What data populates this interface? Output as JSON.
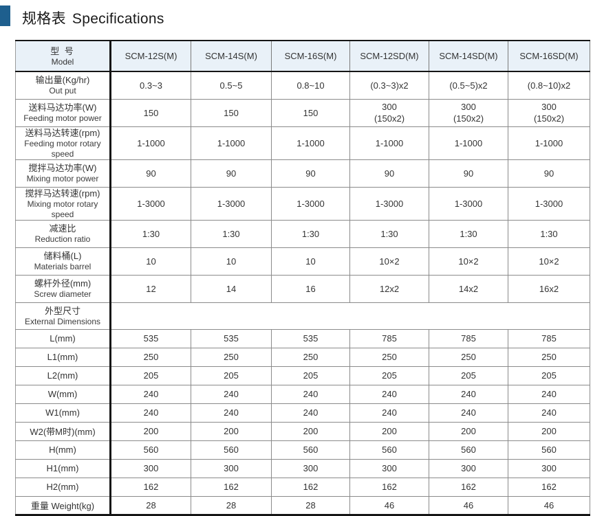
{
  "title": {
    "zh": "规格表",
    "en": "Specifications"
  },
  "colors": {
    "accent_blue": "#1e5f8e",
    "header_bg": "#e9f1f8",
    "border_dark": "#151515",
    "border_gray": "#8a8a8a",
    "text": "#333333"
  },
  "table": {
    "model_header": {
      "zh": "型 号",
      "en": "Model"
    },
    "columns": [
      "SCM-12S(M)",
      "SCM-14S(M)",
      "SCM-16S(M)",
      "SCM-12SD(M)",
      "SCM-14SD(M)",
      "SCM-16SD(M)"
    ],
    "rows": [
      {
        "label_zh": "输出量(Kg/hr)",
        "label_en": "Out put",
        "values": [
          "0.3~3",
          "0.5~5",
          "0.8~10",
          "(0.3~3)x2",
          "(0.5~5)x2",
          "(0.8~10)x2"
        ]
      },
      {
        "label_zh": "送料马达功率(W)",
        "label_en": "Feeding motor power",
        "values": [
          "150",
          "150",
          "150",
          "300\n(150x2)",
          "300\n(150x2)",
          "300\n(150x2)"
        ]
      },
      {
        "label_zh": "送料马达转速(rpm)",
        "label_en": "Feeding motor rotary speed",
        "values": [
          "1-1000",
          "1-1000",
          "1-1000",
          "1-1000",
          "1-1000",
          "1-1000"
        ]
      },
      {
        "label_zh": "搅拌马达功率(W)",
        "label_en": "Mixing motor power",
        "values": [
          "90",
          "90",
          "90",
          "90",
          "90",
          "90"
        ]
      },
      {
        "label_zh": "搅拌马达转速(rpm)",
        "label_en": "Mixing motor rotary speed",
        "values": [
          "1-3000",
          "1-3000",
          "1-3000",
          "1-3000",
          "1-3000",
          "1-3000"
        ]
      },
      {
        "label_zh": "减速比",
        "label_en": "Reduction ratio",
        "values": [
          "1:30",
          "1:30",
          "1:30",
          "1:30",
          "1:30",
          "1:30"
        ]
      },
      {
        "label_zh": "储料桶(L)",
        "label_en": "Materials barrel",
        "values": [
          "10",
          "10",
          "10",
          "10×2",
          "10×2",
          "10×2"
        ]
      },
      {
        "label_zh": "螺杆外径(mm)",
        "label_en": "Screw diameter",
        "values": [
          "12",
          "14",
          "16",
          "12x2",
          "14x2",
          "16x2"
        ]
      },
      {
        "label_zh": "外型尺寸",
        "label_en": "External Dimensions",
        "merged": true
      },
      {
        "label": "L(mm)",
        "values": [
          "535",
          "535",
          "535",
          "785",
          "785",
          "785"
        ]
      },
      {
        "label": "L1(mm)",
        "values": [
          "250",
          "250",
          "250",
          "250",
          "250",
          "250"
        ]
      },
      {
        "label": "L2(mm)",
        "values": [
          "205",
          "205",
          "205",
          "205",
          "205",
          "205"
        ]
      },
      {
        "label": "W(mm)",
        "values": [
          "240",
          "240",
          "240",
          "240",
          "240",
          "240"
        ]
      },
      {
        "label": "W1(mm)",
        "values": [
          "240",
          "240",
          "240",
          "240",
          "240",
          "240"
        ]
      },
      {
        "label": "W2(带M时)(mm)",
        "values": [
          "200",
          "200",
          "200",
          "200",
          "200",
          "200"
        ]
      },
      {
        "label": "H(mm)",
        "values": [
          "560",
          "560",
          "560",
          "560",
          "560",
          "560"
        ]
      },
      {
        "label": "H1(mm)",
        "values": [
          "300",
          "300",
          "300",
          "300",
          "300",
          "300"
        ]
      },
      {
        "label": "H2(mm)",
        "values": [
          "162",
          "162",
          "162",
          "162",
          "162",
          "162"
        ]
      },
      {
        "label": "重量 Weight(kg)",
        "values": [
          "28",
          "28",
          "28",
          "46",
          "46",
          "46"
        ]
      }
    ]
  }
}
